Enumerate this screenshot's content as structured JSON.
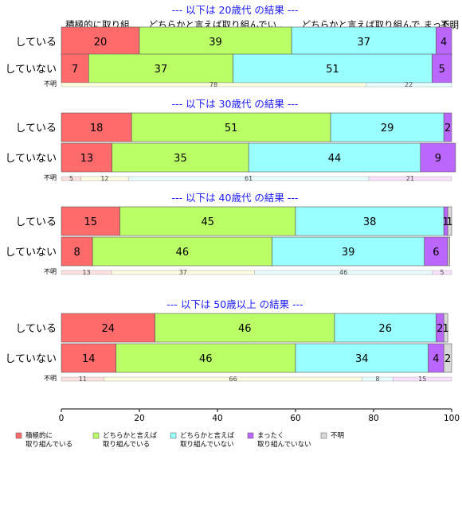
{
  "chart_data": {
    "type": "bar",
    "orientation": "horizontal",
    "stacked": true,
    "xlim": [
      0,
      100
    ],
    "x_ticks": [
      "0",
      "20",
      "40",
      "60",
      "80",
      "100"
    ],
    "categories": [
      "積極的に取り組んでいる",
      "どちらかと言えば取り組んでいる",
      "どちらかと言えば取り組んでいない",
      "まったく取り組んでいない",
      "不明"
    ],
    "colors": [
      "#ff6b6b",
      "#bbff66",
      "#99ffff",
      "#bb66ff",
      "#d9d9d9"
    ],
    "column_headers": [
      {
        "label": "積極的に取り組..",
        "center": 10
      },
      {
        "label": "どちらかと言えば取り組んでい..",
        "center": 39.5
      },
      {
        "label": "どちらかと言えば取り組んで..",
        "center": 77.5
      },
      {
        "label": "まった..",
        "center": 97
      },
      {
        "label": "不明",
        "center": 99.5
      }
    ],
    "legend": {
      "position": "bottom",
      "items": [
        {
          "line1": "積極的に",
          "line2": "取り組んでいる",
          "color": "#ff6b6b"
        },
        {
          "line1": "どちらかと言えば",
          "line2": "取り組んでいる",
          "color": "#bbff66"
        },
        {
          "line1": "どちらかと言えば",
          "line2": "取り組んでいない",
          "color": "#99ffff"
        },
        {
          "line1": "まったく",
          "line2": "取り組んでいない",
          "color": "#bb66ff"
        },
        {
          "line1": "不明",
          "line2": "",
          "color": "#d9d9d9"
        }
      ]
    },
    "panels": [
      {
        "title": "--- 以下は 20歳代 の結果 ---",
        "rows": [
          {
            "label": "している",
            "values": [
              20,
              39,
              37,
              4,
              0
            ],
            "labels": [
              "20",
              "39",
              "37",
              "4",
              ""
            ]
          },
          {
            "label": "していない",
            "values": [
              7,
              37,
              51,
              5,
              0
            ],
            "labels": [
              "7",
              "37",
              "51",
              "5",
              ""
            ]
          }
        ],
        "share": {
          "label": "不明",
          "values": [
            78,
            22
          ],
          "labels": [
            "78",
            "22"
          ],
          "colors": [
            "#fdfde0",
            "#e8fdfd"
          ]
        }
      },
      {
        "title": "--- 以下は 30歳代 の結果 ---",
        "rows": [
          {
            "label": "している",
            "values": [
              18,
              51,
              29,
              2,
              0
            ],
            "labels": [
              "18",
              "51",
              "29",
              "2",
              ""
            ]
          },
          {
            "label": "していない",
            "values": [
              13,
              35,
              44,
              9,
              0
            ],
            "labels": [
              "13",
              "35",
              "44",
              "9",
              ""
            ]
          }
        ],
        "share": {
          "label": "不明",
          "values": [
            5,
            12,
            61,
            21
          ],
          "labels": [
            "5",
            "12",
            "61",
            "21"
          ],
          "colors": [
            "#fde0e0",
            "#fdfde0",
            "#e8fdfd",
            "#f8e0fd"
          ]
        }
      },
      {
        "title": "--- 以下は 40歳代 の結果 ---",
        "rows": [
          {
            "label": "している",
            "values": [
              15,
              45,
              38,
              1,
              1
            ],
            "labels": [
              "15",
              "45",
              "38",
              "1",
              "1"
            ]
          },
          {
            "label": "していない",
            "values": [
              8,
              46,
              39,
              6,
              0.5
            ],
            "labels": [
              "8",
              "46",
              "39",
              "6",
              ""
            ]
          }
        ],
        "share": {
          "label": "不明",
          "values": [
            13,
            37,
            46,
            5
          ],
          "labels": [
            "13",
            "37",
            "46",
            "5"
          ],
          "colors": [
            "#fde0e0",
            "#fdfde0",
            "#e8fdfd",
            "#f8e0fd"
          ]
        }
      },
      {
        "title": "--- 以下は 50歳以上 の結果 ---",
        "rows": [
          {
            "label": "している",
            "values": [
              24,
              46,
              26,
              2,
              1
            ],
            "labels": [
              "24",
              "46",
              "26",
              "2",
              "1"
            ]
          },
          {
            "label": "していない",
            "values": [
              14,
              46,
              34,
              4,
              2
            ],
            "labels": [
              "14",
              "46",
              "34",
              "4",
              "2"
            ]
          }
        ],
        "share": {
          "label": "不明",
          "values": [
            11,
            66,
            8,
            15
          ],
          "labels": [
            "11",
            "66",
            "8",
            "15"
          ],
          "colors": [
            "#fde0e0",
            "#fdfde0",
            "#e8fdfd",
            "#f8e0fd"
          ]
        }
      }
    ]
  }
}
